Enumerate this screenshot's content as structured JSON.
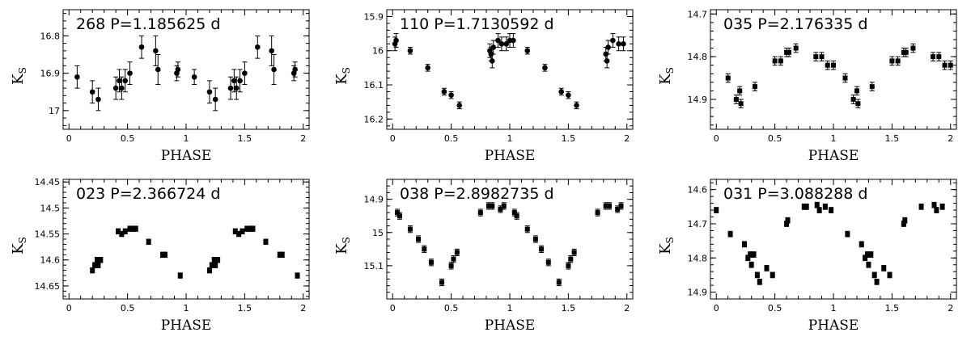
{
  "chart_data": [
    {
      "type": "scatter",
      "title": "268 P=1.185625 d",
      "xlabel": "PHASE",
      "ylabel": "K",
      "ylabel_sub": "S",
      "xlim": [
        -0.05,
        2.05
      ],
      "ylim": [
        16.73,
        17.05
      ],
      "y_inverted": true,
      "xticks": [
        "0",
        "0.5",
        "1",
        "1.5",
        "2"
      ],
      "yticks": [
        "16.8",
        "16.9",
        "17"
      ],
      "points": [
        {
          "x": 0.07,
          "y": 16.91,
          "err": 0.03
        },
        {
          "x": 0.2,
          "y": 16.95,
          "err": 0.03
        },
        {
          "x": 0.25,
          "y": 16.97,
          "err": 0.03
        },
        {
          "x": 0.4,
          "y": 16.94,
          "err": 0.03
        },
        {
          "x": 0.43,
          "y": 16.92,
          "err": 0.03
        },
        {
          "x": 0.45,
          "y": 16.94,
          "err": 0.03
        },
        {
          "x": 0.48,
          "y": 16.92,
          "err": 0.03
        },
        {
          "x": 0.52,
          "y": 16.9,
          "err": 0.03
        },
        {
          "x": 0.62,
          "y": 16.83,
          "err": 0.03
        },
        {
          "x": 0.74,
          "y": 16.84,
          "err": 0.04
        },
        {
          "x": 0.76,
          "y": 16.89,
          "err": 0.04
        },
        {
          "x": 0.92,
          "y": 16.9,
          "err": 0.02
        },
        {
          "x": 0.93,
          "y": 16.89,
          "err": 0.02
        },
        {
          "x": 1.07,
          "y": 16.91,
          "err": 0.02
        },
        {
          "x": 1.2,
          "y": 16.95,
          "err": 0.03
        },
        {
          "x": 1.25,
          "y": 16.97,
          "err": 0.03
        },
        {
          "x": 1.38,
          "y": 16.94,
          "err": 0.03
        },
        {
          "x": 1.41,
          "y": 16.92,
          "err": 0.03
        },
        {
          "x": 1.43,
          "y": 16.94,
          "err": 0.03
        },
        {
          "x": 1.46,
          "y": 16.92,
          "err": 0.03
        },
        {
          "x": 1.5,
          "y": 16.9,
          "err": 0.03
        },
        {
          "x": 1.61,
          "y": 16.83,
          "err": 0.03
        },
        {
          "x": 1.73,
          "y": 16.84,
          "err": 0.04
        },
        {
          "x": 1.75,
          "y": 16.89,
          "err": 0.04
        },
        {
          "x": 1.92,
          "y": 16.9,
          "err": 0.02
        },
        {
          "x": 1.93,
          "y": 16.89,
          "err": 0.02
        }
      ]
    },
    {
      "type": "scatter",
      "title": "110 P=1.7130592 d",
      "xlabel": "PHASE",
      "ylabel": "K",
      "ylabel_sub": "S",
      "xlim": [
        -0.05,
        2.05
      ],
      "ylim": [
        15.88,
        16.23
      ],
      "y_inverted": true,
      "xticks": [
        "0",
        "0.5",
        "1",
        "1.5",
        "2"
      ],
      "yticks": [
        "15.9",
        "16",
        "16.1",
        "16.2"
      ],
      "points": [
        {
          "x": 0.02,
          "y": 15.98,
          "err": 0.02
        },
        {
          "x": 0.03,
          "y": 15.97,
          "err": 0.02
        },
        {
          "x": 0.15,
          "y": 16.0,
          "err": 0.01
        },
        {
          "x": 0.3,
          "y": 16.05,
          "err": 0.01
        },
        {
          "x": 0.44,
          "y": 16.12,
          "err": 0.01
        },
        {
          "x": 0.5,
          "y": 16.13,
          "err": 0.01
        },
        {
          "x": 0.57,
          "y": 16.16,
          "err": 0.01
        },
        {
          "x": 0.83,
          "y": 16.0,
          "err": 0.02
        },
        {
          "x": 0.84,
          "y": 16.01,
          "err": 0.02
        },
        {
          "x": 0.85,
          "y": 16.03,
          "err": 0.02
        },
        {
          "x": 0.86,
          "y": 15.99,
          "err": 0.02
        },
        {
          "x": 0.9,
          "y": 15.97,
          "err": 0.02
        },
        {
          "x": 0.93,
          "y": 15.98,
          "err": 0.02
        },
        {
          "x": 0.97,
          "y": 15.98,
          "err": 0.02
        },
        {
          "x": 1.0,
          "y": 15.97,
          "err": 0.02
        },
        {
          "x": 1.03,
          "y": 15.97,
          "err": 0.02
        },
        {
          "x": 1.15,
          "y": 16.0,
          "err": 0.01
        },
        {
          "x": 1.3,
          "y": 16.05,
          "err": 0.01
        },
        {
          "x": 1.44,
          "y": 16.12,
          "err": 0.01
        },
        {
          "x": 1.5,
          "y": 16.13,
          "err": 0.01
        },
        {
          "x": 1.57,
          "y": 16.16,
          "err": 0.01
        },
        {
          "x": 1.82,
          "y": 16.01,
          "err": 0.02
        },
        {
          "x": 1.83,
          "y": 16.03,
          "err": 0.02
        },
        {
          "x": 1.84,
          "y": 15.99,
          "err": 0.02
        },
        {
          "x": 1.88,
          "y": 15.97,
          "err": 0.02
        },
        {
          "x": 1.93,
          "y": 15.98,
          "err": 0.02
        },
        {
          "x": 1.97,
          "y": 15.98,
          "err": 0.02
        }
      ]
    },
    {
      "type": "scatter",
      "title": "035 P=2.176335 d",
      "xlabel": "PHASE",
      "ylabel": "K",
      "ylabel_sub": "S",
      "xlim": [
        -0.05,
        2.05
      ],
      "ylim": [
        14.69,
        14.97
      ],
      "y_inverted": true,
      "xticks": [
        "0",
        "0.5",
        "1",
        "1.5",
        "2"
      ],
      "yticks": [
        "14.7",
        "14.8",
        "14.9"
      ],
      "points": [
        {
          "x": 0.1,
          "y": 14.85,
          "err": 0.01
        },
        {
          "x": 0.17,
          "y": 14.9,
          "err": 0.01
        },
        {
          "x": 0.2,
          "y": 14.88,
          "err": 0.01
        },
        {
          "x": 0.21,
          "y": 14.91,
          "err": 0.01
        },
        {
          "x": 0.33,
          "y": 14.87,
          "err": 0.01
        },
        {
          "x": 0.5,
          "y": 14.81,
          "err": 0.01
        },
        {
          "x": 0.55,
          "y": 14.81,
          "err": 0.01
        },
        {
          "x": 0.6,
          "y": 14.79,
          "err": 0.01
        },
        {
          "x": 0.62,
          "y": 14.79,
          "err": 0.01
        },
        {
          "x": 0.68,
          "y": 14.78,
          "err": 0.01
        },
        {
          "x": 0.85,
          "y": 14.8,
          "err": 0.01
        },
        {
          "x": 0.9,
          "y": 14.8,
          "err": 0.01
        },
        {
          "x": 0.95,
          "y": 14.82,
          "err": 0.01
        },
        {
          "x": 1.0,
          "y": 14.82,
          "err": 0.01
        },
        {
          "x": 1.1,
          "y": 14.85,
          "err": 0.01
        },
        {
          "x": 1.17,
          "y": 14.9,
          "err": 0.01
        },
        {
          "x": 1.2,
          "y": 14.88,
          "err": 0.01
        },
        {
          "x": 1.21,
          "y": 14.91,
          "err": 0.01
        },
        {
          "x": 1.33,
          "y": 14.87,
          "err": 0.01
        },
        {
          "x": 1.5,
          "y": 14.81,
          "err": 0.01
        },
        {
          "x": 1.55,
          "y": 14.81,
          "err": 0.01
        },
        {
          "x": 1.6,
          "y": 14.79,
          "err": 0.01
        },
        {
          "x": 1.62,
          "y": 14.79,
          "err": 0.01
        },
        {
          "x": 1.68,
          "y": 14.78,
          "err": 0.01
        },
        {
          "x": 1.85,
          "y": 14.8,
          "err": 0.01
        },
        {
          "x": 1.9,
          "y": 14.8,
          "err": 0.01
        },
        {
          "x": 1.95,
          "y": 14.82,
          "err": 0.01
        },
        {
          "x": 2.0,
          "y": 14.82,
          "err": 0.01
        }
      ]
    },
    {
      "type": "scatter",
      "title": "023 P=2.366724 d",
      "xlabel": "PHASE",
      "ylabel": "K",
      "ylabel_sub": "S",
      "xlim": [
        -0.05,
        2.05
      ],
      "ylim": [
        14.445,
        14.675
      ],
      "y_inverted": true,
      "xticks": [
        "0",
        "0.5",
        "1",
        "1.5",
        "2"
      ],
      "yticks": [
        "14.45",
        "14.5",
        "14.55",
        "14.6",
        "14.65"
      ],
      "points": [
        {
          "x": 0.2,
          "y": 14.62,
          "err": 0.005
        },
        {
          "x": 0.22,
          "y": 14.61,
          "err": 0.005
        },
        {
          "x": 0.24,
          "y": 14.6,
          "err": 0.005
        },
        {
          "x": 0.25,
          "y": 14.61,
          "err": 0.005
        },
        {
          "x": 0.27,
          "y": 14.6,
          "err": 0.005
        },
        {
          "x": 0.42,
          "y": 14.545,
          "err": 0.005
        },
        {
          "x": 0.45,
          "y": 14.55,
          "err": 0.005
        },
        {
          "x": 0.48,
          "y": 14.545,
          "err": 0.005
        },
        {
          "x": 0.52,
          "y": 14.54,
          "err": 0.005
        },
        {
          "x": 0.55,
          "y": 14.54,
          "err": 0.005
        },
        {
          "x": 0.57,
          "y": 14.54,
          "err": 0.005
        },
        {
          "x": 0.68,
          "y": 14.565,
          "err": 0.005
        },
        {
          "x": 0.8,
          "y": 14.59,
          "err": 0.005
        },
        {
          "x": 0.82,
          "y": 14.59,
          "err": 0.005
        },
        {
          "x": 0.95,
          "y": 14.63,
          "err": 0.005
        },
        {
          "x": 1.2,
          "y": 14.62,
          "err": 0.005
        },
        {
          "x": 1.22,
          "y": 14.61,
          "err": 0.005
        },
        {
          "x": 1.24,
          "y": 14.6,
          "err": 0.005
        },
        {
          "x": 1.25,
          "y": 14.61,
          "err": 0.005
        },
        {
          "x": 1.27,
          "y": 14.6,
          "err": 0.005
        },
        {
          "x": 1.42,
          "y": 14.545,
          "err": 0.005
        },
        {
          "x": 1.45,
          "y": 14.55,
          "err": 0.005
        },
        {
          "x": 1.48,
          "y": 14.545,
          "err": 0.005
        },
        {
          "x": 1.52,
          "y": 14.54,
          "err": 0.005
        },
        {
          "x": 1.55,
          "y": 14.54,
          "err": 0.005
        },
        {
          "x": 1.57,
          "y": 14.54,
          "err": 0.005
        },
        {
          "x": 1.68,
          "y": 14.565,
          "err": 0.005
        },
        {
          "x": 1.8,
          "y": 14.59,
          "err": 0.005
        },
        {
          "x": 1.82,
          "y": 14.59,
          "err": 0.005
        },
        {
          "x": 1.95,
          "y": 14.63,
          "err": 0.005
        }
      ]
    },
    {
      "type": "scatter",
      "title": "038 P=2.8982735 d",
      "xlabel": "PHASE",
      "ylabel": "K",
      "ylabel_sub": "S",
      "xlim": [
        -0.05,
        2.05
      ],
      "ylim": [
        14.84,
        15.2
      ],
      "y_inverted": true,
      "xticks": [
        "0",
        "0.5",
        "1",
        "1.5",
        "2"
      ],
      "yticks": [
        "14.9",
        "15",
        "15.1"
      ],
      "points": [
        {
          "x": 0.04,
          "y": 14.94,
          "err": 0.01
        },
        {
          "x": 0.06,
          "y": 14.95,
          "err": 0.01
        },
        {
          "x": 0.15,
          "y": 14.99,
          "err": 0.01
        },
        {
          "x": 0.22,
          "y": 15.02,
          "err": 0.01
        },
        {
          "x": 0.27,
          "y": 15.05,
          "err": 0.01
        },
        {
          "x": 0.33,
          "y": 15.09,
          "err": 0.01
        },
        {
          "x": 0.42,
          "y": 15.15,
          "err": 0.01
        },
        {
          "x": 0.5,
          "y": 15.1,
          "err": 0.01
        },
        {
          "x": 0.52,
          "y": 15.08,
          "err": 0.01
        },
        {
          "x": 0.55,
          "y": 15.06,
          "err": 0.01
        },
        {
          "x": 0.75,
          "y": 14.94,
          "err": 0.01
        },
        {
          "x": 0.82,
          "y": 14.92,
          "err": 0.01
        },
        {
          "x": 0.85,
          "y": 14.92,
          "err": 0.01
        },
        {
          "x": 0.92,
          "y": 14.93,
          "err": 0.01
        },
        {
          "x": 0.95,
          "y": 14.92,
          "err": 0.01
        },
        {
          "x": 1.04,
          "y": 14.94,
          "err": 0.01
        },
        {
          "x": 1.06,
          "y": 14.95,
          "err": 0.01
        },
        {
          "x": 1.15,
          "y": 14.99,
          "err": 0.01
        },
        {
          "x": 1.22,
          "y": 15.02,
          "err": 0.01
        },
        {
          "x": 1.27,
          "y": 15.05,
          "err": 0.01
        },
        {
          "x": 1.33,
          "y": 15.09,
          "err": 0.01
        },
        {
          "x": 1.42,
          "y": 15.15,
          "err": 0.01
        },
        {
          "x": 1.5,
          "y": 15.1,
          "err": 0.01
        },
        {
          "x": 1.52,
          "y": 15.08,
          "err": 0.01
        },
        {
          "x": 1.55,
          "y": 15.06,
          "err": 0.01
        },
        {
          "x": 1.75,
          "y": 14.94,
          "err": 0.01
        },
        {
          "x": 1.82,
          "y": 14.92,
          "err": 0.01
        },
        {
          "x": 1.85,
          "y": 14.92,
          "err": 0.01
        },
        {
          "x": 1.92,
          "y": 14.93,
          "err": 0.01
        },
        {
          "x": 1.95,
          "y": 14.92,
          "err": 0.01
        }
      ]
    },
    {
      "type": "scatter",
      "title": "031 P=3.088288 d",
      "xlabel": "PHASE",
      "ylabel": "K",
      "ylabel_sub": "S",
      "xlim": [
        -0.05,
        2.05
      ],
      "ylim": [
        14.57,
        14.92
      ],
      "y_inverted": true,
      "xticks": [
        "0",
        "0.5",
        "1",
        "1.5",
        "2"
      ],
      "yticks": [
        "14.6",
        "14.7",
        "14.8",
        "14.9"
      ],
      "points": [
        {
          "x": 0.0,
          "y": 14.66,
          "err": 0.008
        },
        {
          "x": 0.12,
          "y": 14.73,
          "err": 0.008
        },
        {
          "x": 0.24,
          "y": 14.76,
          "err": 0.008
        },
        {
          "x": 0.27,
          "y": 14.8,
          "err": 0.008
        },
        {
          "x": 0.29,
          "y": 14.79,
          "err": 0.008
        },
        {
          "x": 0.3,
          "y": 14.82,
          "err": 0.008
        },
        {
          "x": 0.32,
          "y": 14.79,
          "err": 0.008
        },
        {
          "x": 0.35,
          "y": 14.85,
          "err": 0.008
        },
        {
          "x": 0.37,
          "y": 14.87,
          "err": 0.008
        },
        {
          "x": 0.43,
          "y": 14.83,
          "err": 0.008
        },
        {
          "x": 0.48,
          "y": 14.85,
          "err": 0.008
        },
        {
          "x": 0.6,
          "y": 14.7,
          "err": 0.008
        },
        {
          "x": 0.61,
          "y": 14.69,
          "err": 0.008
        },
        {
          "x": 0.75,
          "y": 14.65,
          "err": 0.008
        },
        {
          "x": 0.77,
          "y": 14.65,
          "err": 0.008
        },
        {
          "x": 0.86,
          "y": 14.645,
          "err": 0.008
        },
        {
          "x": 0.88,
          "y": 14.66,
          "err": 0.008
        },
        {
          "x": 0.93,
          "y": 14.65,
          "err": 0.008
        },
        {
          "x": 0.98,
          "y": 14.66,
          "err": 0.008
        },
        {
          "x": 1.12,
          "y": 14.73,
          "err": 0.008
        },
        {
          "x": 1.24,
          "y": 14.76,
          "err": 0.008
        },
        {
          "x": 1.27,
          "y": 14.8,
          "err": 0.008
        },
        {
          "x": 1.29,
          "y": 14.79,
          "err": 0.008
        },
        {
          "x": 1.3,
          "y": 14.82,
          "err": 0.008
        },
        {
          "x": 1.32,
          "y": 14.79,
          "err": 0.008
        },
        {
          "x": 1.35,
          "y": 14.85,
          "err": 0.008
        },
        {
          "x": 1.37,
          "y": 14.87,
          "err": 0.008
        },
        {
          "x": 1.43,
          "y": 14.83,
          "err": 0.008
        },
        {
          "x": 1.48,
          "y": 14.85,
          "err": 0.008
        },
        {
          "x": 1.6,
          "y": 14.7,
          "err": 0.008
        },
        {
          "x": 1.61,
          "y": 14.69,
          "err": 0.008
        },
        {
          "x": 1.75,
          "y": 14.65,
          "err": 0.008
        },
        {
          "x": 1.86,
          "y": 14.645,
          "err": 0.008
        },
        {
          "x": 1.88,
          "y": 14.66,
          "err": 0.008
        },
        {
          "x": 1.93,
          "y": 14.65,
          "err": 0.008
        }
      ]
    }
  ]
}
